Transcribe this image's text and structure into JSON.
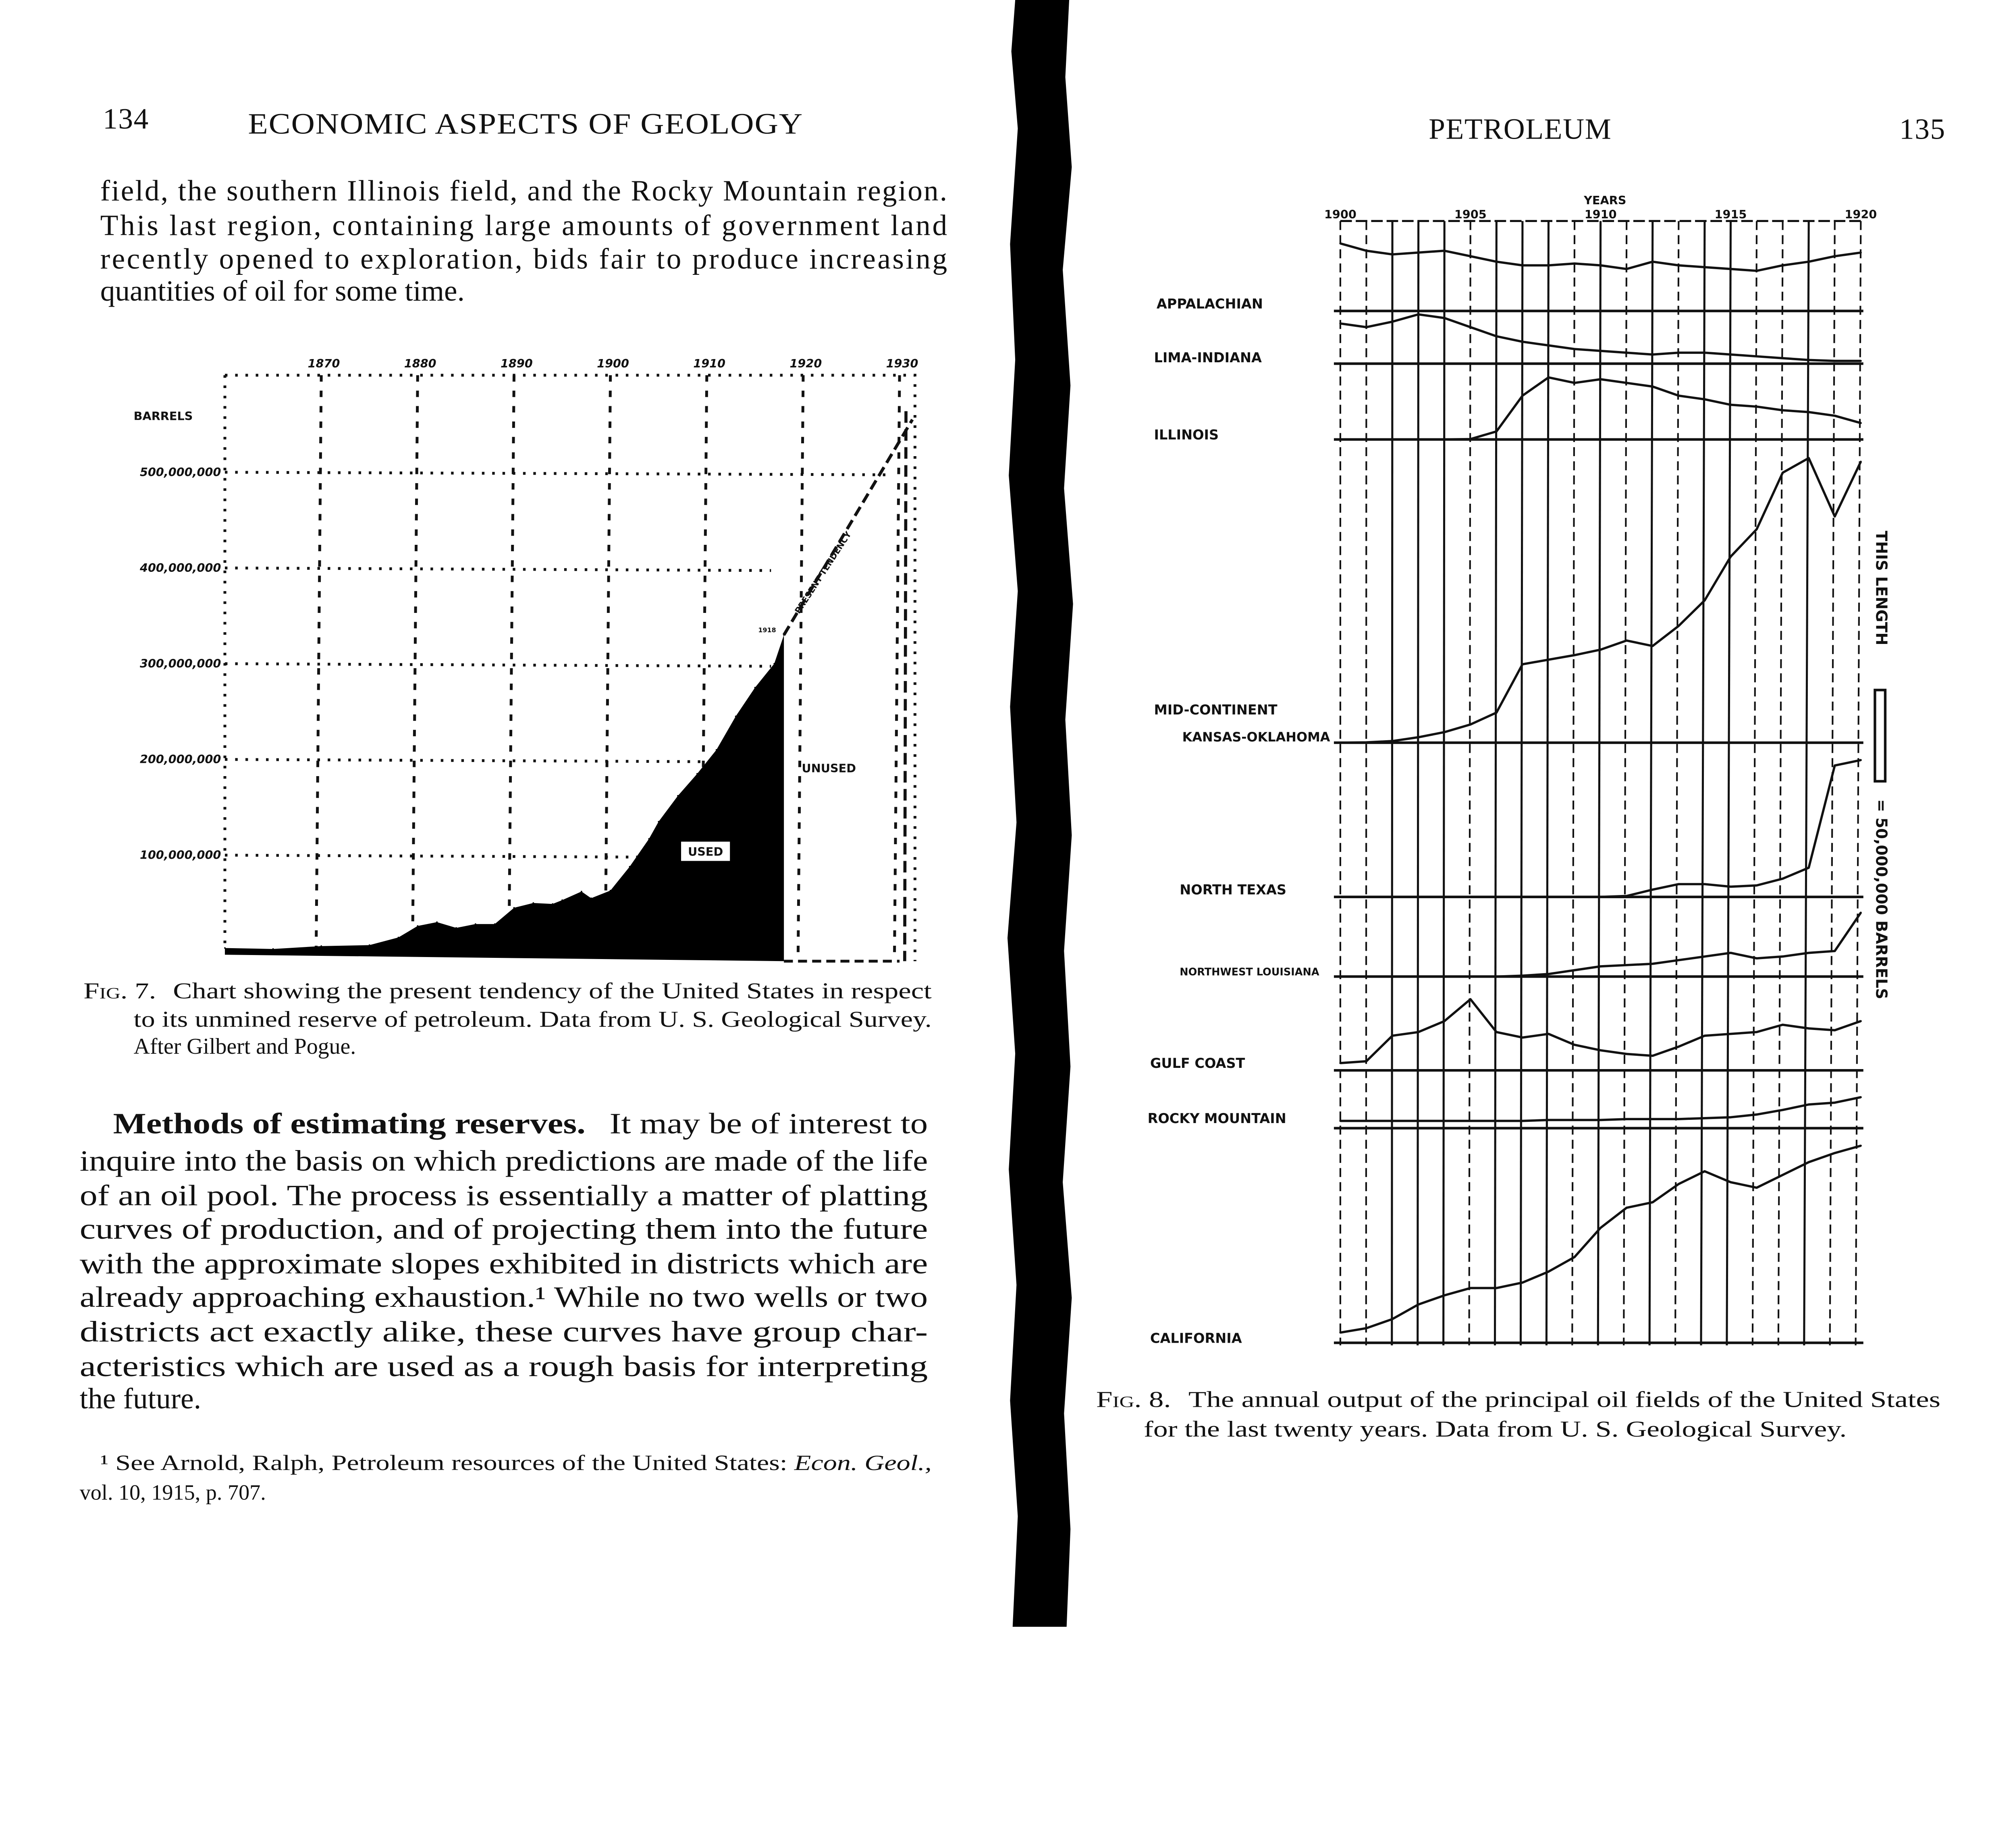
{
  "left_page": {
    "page_number": "134",
    "running_head": "ECONOMIC ASPECTS OF GEOLOGY",
    "paragraph_lines": [
      "field, the southern Illinois field, and the Rocky Mountain region.",
      "This last region, containing large amounts of government land",
      "recently opened to exploration, bids fair to produce increasing",
      "quantities of oil for some time."
    ],
    "caption": {
      "label": "Fig. 7.",
      "lines": [
        "Chart showing the present tendency of the United States in respect",
        "to its unmined reserve of petroleum.  Data from U. S. Geological Survey.",
        "After Gilbert and Pogue."
      ]
    },
    "section": {
      "heading": "Methods of estimating reserves.",
      "first_line_rest": "It may be of interest to",
      "lines": [
        "inquire into the basis on which predictions are made of the life",
        "of an oil pool.  The process is essentially a matter of platting",
        "curves of production, and of projecting them into the future",
        "with the approximate slopes exhibited in districts which are",
        "already approaching exhaustion.¹  While no two wells or two",
        "districts act exactly alike, these curves have group char-",
        "acteristics which are used as a rough basis for interpreting",
        "the future."
      ]
    },
    "footnote": {
      "line1_text": "¹ See Arnold, Ralph, Petroleum resources of the United States: ",
      "line1_italic": "Econ. Geol.,",
      "line2": "vol. 10, 1915, p. 707."
    }
  },
  "right_page": {
    "running_head": "PETROLEUM",
    "page_number": "135",
    "caption": {
      "label": "Fig. 8.",
      "lines": [
        "The annual output of the principal oil fields of the United States",
        "for the last twenty years.  Data from U. S. Geological Survey."
      ]
    }
  },
  "chart_data": [
    {
      "type": "area",
      "ylabel": "BARRELS",
      "x_ticks": [
        "1870",
        "1880",
        "1890",
        "1900",
        "1910",
        "1920",
        "1930"
      ],
      "y_ticks": [
        "100,000,000",
        "200,000,000",
        "300,000,000",
        "400,000,000",
        "500,000,000"
      ],
      "xlim": [
        1860,
        1930
      ],
      "ylim": [
        0,
        550000000
      ],
      "grid": true,
      "used_series": {
        "years": [
          1860,
          1865,
          1870,
          1875,
          1878,
          1880,
          1882,
          1884,
          1886,
          1888,
          1890,
          1892,
          1894,
          1895,
          1897,
          1898,
          1900,
          1902,
          1904,
          1905,
          1907,
          1909,
          1911,
          1913,
          1915,
          1917,
          1918
        ],
        "values": [
          3,
          2,
          5,
          6,
          14,
          26,
          30,
          24,
          28,
          28,
          45,
          50,
          49,
          53,
          62,
          55,
          63,
          88,
          117,
          135,
          162,
          185,
          210,
          245,
          275,
          300,
          330
        ]
      },
      "present_tendency": {
        "years": [
          1918,
          1930
        ],
        "values": [
          330,
          555
        ]
      },
      "value_unit_multiplier": 1000000,
      "annotations": {
        "used": "USED",
        "unused": "UNUSED",
        "tendency": "PRESENT TENDENCY",
        "peak_year": "1918"
      }
    },
    {
      "type": "line",
      "xlabel": "YEARS",
      "x_ticks": [
        "1900",
        "1905",
        "1910",
        "1915",
        "1920"
      ],
      "xlim": [
        1900,
        1920
      ],
      "scale_note": {
        "prefix": "THIS LENGTH",
        "suffix": "= 50,000,000 BARRELS",
        "value_millions": 50
      },
      "unit": "millions of barrels",
      "years": [
        1900,
        1901,
        1902,
        1903,
        1904,
        1905,
        1906,
        1907,
        1908,
        1909,
        1910,
        1911,
        1912,
        1913,
        1914,
        1915,
        1916,
        1917,
        1918,
        1919,
        1920
      ],
      "series": [
        {
          "name": "APPALACHIAN",
          "values": [
            37,
            33,
            31,
            32,
            33,
            30,
            27,
            25,
            25,
            26,
            25,
            23,
            27,
            25,
            24,
            23,
            22,
            25,
            27,
            30,
            32
          ]
        },
        {
          "name": "LIMA-INDIANA",
          "values": [
            22,
            20,
            23,
            27,
            25,
            20,
            15,
            12,
            10,
            8,
            7,
            6,
            5,
            6,
            6,
            5,
            4,
            3,
            2,
            1.5,
            1.5
          ]
        },
        {
          "name": "ILLINOIS",
          "values": [
            0,
            0,
            0,
            0,
            0,
            0.2,
            4.4,
            24,
            34,
            31,
            33,
            31,
            29,
            24,
            22,
            19,
            18,
            16,
            15,
            13,
            9
          ]
        },
        {
          "name": "MID-CONTINENT",
          "sublabel": "KANSAS-OKLAHOMA",
          "values": [
            0,
            0.2,
            0.9,
            3,
            5.8,
            10,
            16.5,
            43,
            45.5,
            48,
            51,
            56,
            53,
            64,
            78,
            102,
            117,
            148,
            156,
            124,
            154
          ]
        },
        {
          "name": "NORTH TEXAS",
          "values": [
            0,
            0,
            0,
            0,
            0,
            0,
            0,
            0,
            0,
            0,
            0,
            0.5,
            4,
            7,
            7,
            5.6,
            6.3,
            10,
            16,
            72,
            75
          ]
        },
        {
          "name": "NORTHWEST LOUISIANA",
          "values": [
            null,
            null,
            null,
            null,
            null,
            null,
            0,
            0.5,
            1.4,
            3.5,
            5.6,
            6.3,
            7,
            9,
            11,
            13,
            10,
            11,
            13,
            14,
            35
          ]
        },
        {
          "name": "GULF COAST",
          "values": [
            4,
            5,
            19,
            21,
            27,
            39,
            21,
            18,
            20,
            14,
            11,
            9,
            8,
            13,
            19,
            20,
            21,
            25,
            23,
            22,
            27
          ]
        },
        {
          "name": "ROCKY MOUNTAIN",
          "values": [
            4,
            4,
            4,
            4,
            4,
            4,
            4,
            4,
            4.5,
            4.5,
            4.5,
            5,
            5,
            5,
            5.5,
            6,
            7.5,
            10,
            13,
            14,
            17
          ]
        },
        {
          "name": "CALIFORNIA",
          "values": [
            5.6,
            8,
            13,
            21,
            26,
            30,
            30,
            33,
            39,
            47,
            63,
            74,
            77,
            87,
            94,
            88,
            85,
            92,
            99,
            104,
            108
          ]
        }
      ]
    }
  ]
}
